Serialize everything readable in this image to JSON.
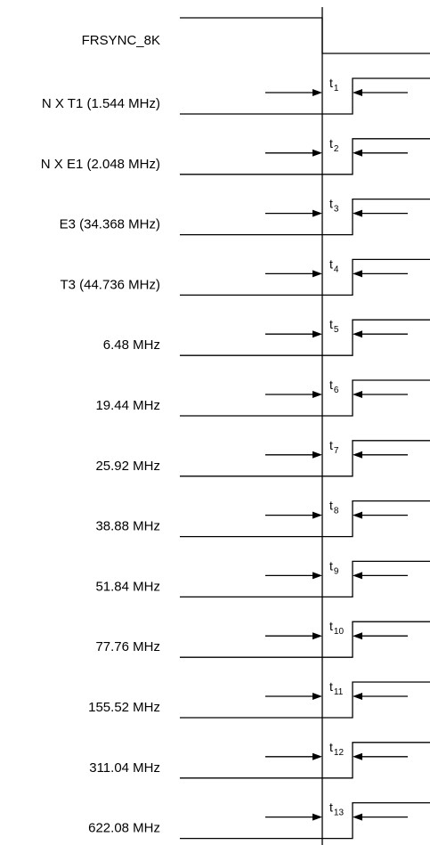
{
  "reference_signal": {
    "label": "FRSYNC_8K"
  },
  "signals": [
    {
      "label": "N X T1 (1.544 MHz)",
      "timing": "t",
      "timing_sub": "1"
    },
    {
      "label": "N X E1 (2.048 MHz)",
      "timing": "t",
      "timing_sub": "2"
    },
    {
      "label": "E3 (34.368 MHz)",
      "timing": "t",
      "timing_sub": "3"
    },
    {
      "label": "T3 (44.736 MHz)",
      "timing": "t",
      "timing_sub": "4"
    },
    {
      "label": "6.48 MHz",
      "timing": "t",
      "timing_sub": "5"
    },
    {
      "label": "19.44 MHz",
      "timing": "t",
      "timing_sub": "6"
    },
    {
      "label": "25.92 MHz",
      "timing": "t",
      "timing_sub": "7"
    },
    {
      "label": "38.88 MHz",
      "timing": "t",
      "timing_sub": "8"
    },
    {
      "label": "51.84 MHz",
      "timing": "t",
      "timing_sub": "9"
    },
    {
      "label": "77.76 MHz",
      "timing": "t",
      "timing_sub": "10"
    },
    {
      "label": "155.52 MHz",
      "timing": "t",
      "timing_sub": "11"
    },
    {
      "label": "311.04 MHz",
      "timing": "t",
      "timing_sub": "12"
    },
    {
      "label": "622.08 MHz",
      "timing": "t",
      "timing_sub": "13"
    }
  ]
}
